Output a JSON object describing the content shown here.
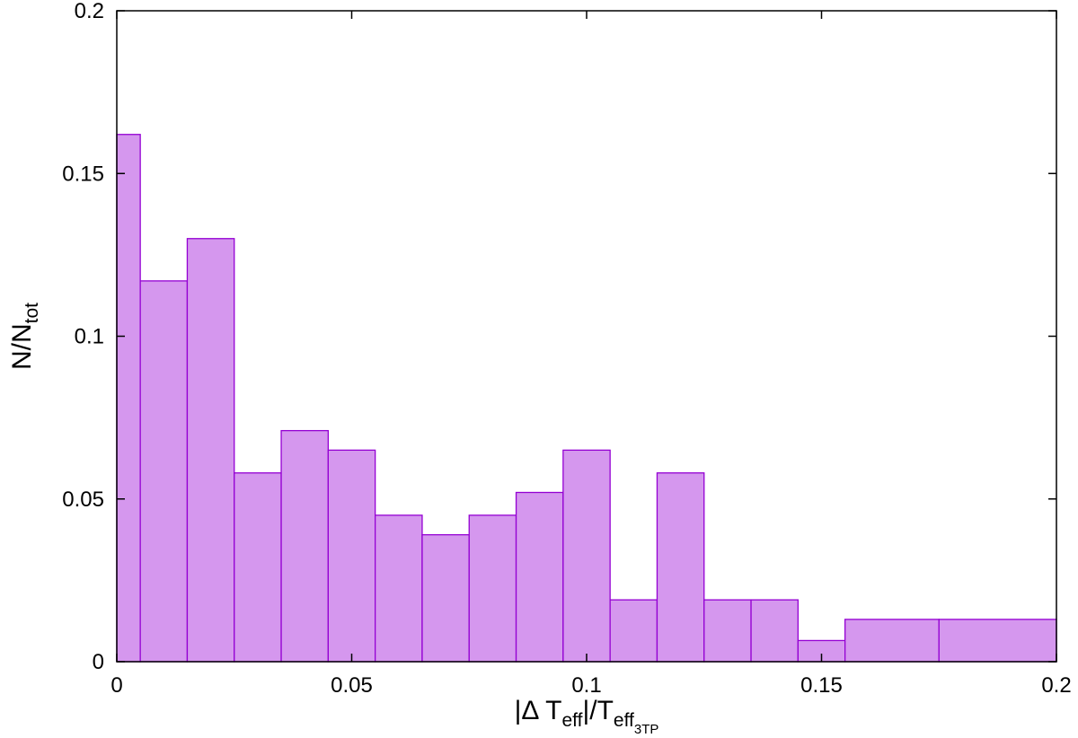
{
  "chart_data": {
    "type": "bar",
    "title": "",
    "xlabel": {
      "prefix": "|Δ T",
      "sub1": "eff",
      "mid": "|/T",
      "sub2": "eff",
      "subsub": "3TP"
    },
    "ylabel": {
      "main": "N/N",
      "sub": "tot"
    },
    "xlim": [
      0,
      0.2
    ],
    "ylim": [
      0,
      0.2
    ],
    "xticks": [
      0,
      0.05,
      0.1,
      0.15,
      0.2
    ],
    "xtick_labels": [
      "0",
      "0.05",
      "0.1",
      "0.15",
      "0.2"
    ],
    "yticks": [
      0,
      0.05,
      0.1,
      0.15,
      0.2
    ],
    "ytick_labels": [
      "0",
      "0.05",
      "0.1",
      "0.15",
      "0.2"
    ],
    "grid": false,
    "legend": "none",
    "bar_fill": "#d597ee",
    "bar_stroke": "#9400d3",
    "bins": [
      {
        "x0": 0.0,
        "x1": 0.005,
        "value": 0.162
      },
      {
        "x0": 0.005,
        "x1": 0.015,
        "value": 0.117
      },
      {
        "x0": 0.015,
        "x1": 0.025,
        "value": 0.13
      },
      {
        "x0": 0.025,
        "x1": 0.035,
        "value": 0.058
      },
      {
        "x0": 0.035,
        "x1": 0.045,
        "value": 0.071
      },
      {
        "x0": 0.045,
        "x1": 0.055,
        "value": 0.065
      },
      {
        "x0": 0.055,
        "x1": 0.065,
        "value": 0.045
      },
      {
        "x0": 0.065,
        "x1": 0.075,
        "value": 0.039
      },
      {
        "x0": 0.075,
        "x1": 0.085,
        "value": 0.045
      },
      {
        "x0": 0.085,
        "x1": 0.095,
        "value": 0.052
      },
      {
        "x0": 0.095,
        "x1": 0.105,
        "value": 0.065
      },
      {
        "x0": 0.105,
        "x1": 0.115,
        "value": 0.019
      },
      {
        "x0": 0.115,
        "x1": 0.125,
        "value": 0.058
      },
      {
        "x0": 0.125,
        "x1": 0.135,
        "value": 0.019
      },
      {
        "x0": 0.135,
        "x1": 0.145,
        "value": 0.019
      },
      {
        "x0": 0.145,
        "x1": 0.155,
        "value": 0.0065
      },
      {
        "x0": 0.155,
        "x1": 0.175,
        "value": 0.013
      },
      {
        "x0": 0.175,
        "x1": 0.2,
        "value": 0.013
      }
    ]
  }
}
